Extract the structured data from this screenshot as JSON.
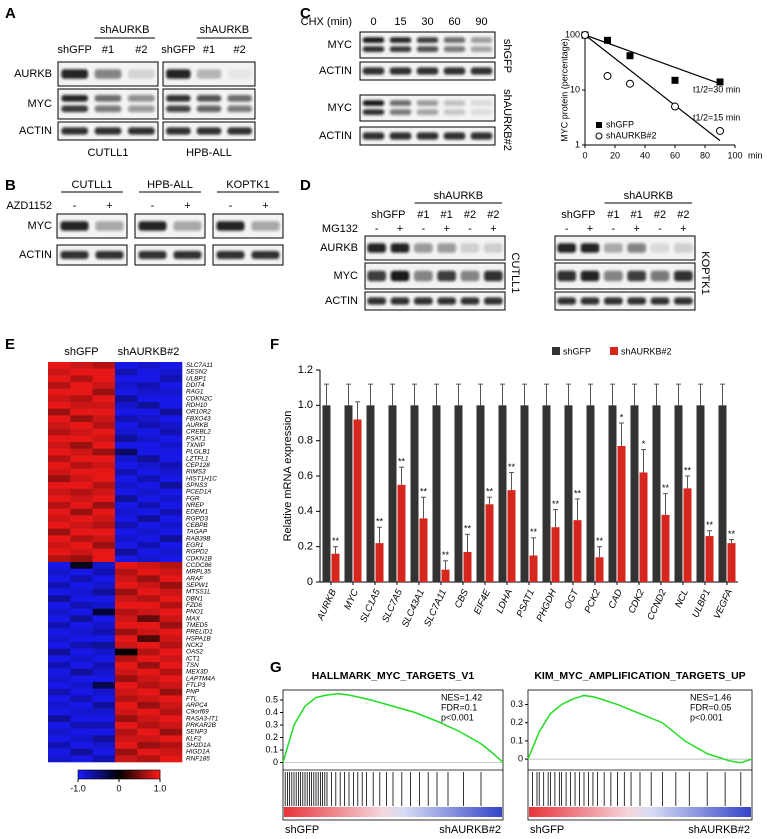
{
  "panel_labels": [
    "A",
    "B",
    "C",
    "D",
    "E",
    "F",
    "G"
  ],
  "blots": {
    "A": {
      "group": "shAURKB",
      "lanes": [
        "shGFP",
        "#1",
        "#2"
      ],
      "rows": [
        "AURKB",
        "MYC",
        "ACTIN"
      ],
      "cells": [
        "CUTLL1",
        "HPB-ALL"
      ]
    },
    "B": {
      "cells": [
        "CUTLL1",
        "HPB-ALL",
        "KOPTK1"
      ],
      "treatment": "AZD1152",
      "signs": [
        "-",
        "+"
      ],
      "rows": [
        "MYC",
        "ACTIN"
      ]
    },
    "C": {
      "treatment": "CHX (min)",
      "times": [
        "0",
        "15",
        "30",
        "60",
        "90"
      ],
      "rows": [
        "MYC",
        "ACTIN"
      ],
      "conditions": [
        "shGFP",
        "shAURKB#2"
      ]
    },
    "D": {
      "group": "shAURKB",
      "lanes": [
        "shGFP",
        "#1",
        "#1",
        "#2",
        "#2"
      ],
      "treatment": "MG132",
      "signs": [
        "-",
        "+",
        "-",
        "+",
        "-",
        "+"
      ],
      "rows": [
        "AURKB",
        "MYC",
        "ACTIN"
      ],
      "cells": [
        "CUTLL1",
        "KOPTK1"
      ]
    }
  },
  "chart_data": [
    {
      "type": "scatter",
      "y_label": "MYC protein (percentage)",
      "x_unit": "min",
      "log_y": true,
      "xlim": [
        0,
        100
      ],
      "xticks": [
        0,
        20,
        40,
        60,
        80,
        100
      ],
      "ylim": [
        1,
        100
      ],
      "yticks": [
        1,
        10,
        100
      ],
      "series": [
        {
          "name": "shGFP",
          "marker": "filled-square",
          "color": "#000000",
          "x": [
            0,
            15,
            30,
            60,
            90
          ],
          "values": [
            100,
            80,
            42,
            15,
            14
          ]
        },
        {
          "name": "shAURKB#2",
          "marker": "open-circle",
          "color": "#000000",
          "x": [
            0,
            15,
            30,
            60,
            90
          ],
          "values": [
            100,
            18,
            13,
            5,
            1.8
          ]
        }
      ],
      "fits": [
        {
          "x": [
            0,
            90
          ],
          "values": [
            100,
            13
          ]
        },
        {
          "x": [
            0,
            90
          ],
          "values": [
            100,
            1.2
          ]
        }
      ],
      "annotations": [
        "t1/2=30 min",
        "t1/2=15 min"
      ]
    },
    {
      "type": "heatmap",
      "groups": [
        "shGFP",
        "shAURKB#2"
      ],
      "genes": [
        "SLC7A11",
        "SESN2",
        "ULBP1",
        "DDIT4",
        "RAG1",
        "CDKN2C",
        "RDH10",
        "OR10R2",
        "FBXO43",
        "AURKB",
        "CREBL2",
        "PSAT1",
        "TXNIP",
        "PLGLB1",
        "LZTFL1",
        "CEP128",
        "RIMS3",
        "HIST1H1C",
        "SPNS3",
        "PCED1A",
        "FGR",
        "NREP",
        "EDEM1",
        "RGPD3",
        "CEBPB",
        "TAGAP",
        "RAB39B",
        "EGR1",
        "RGPD2",
        "CDKN1B",
        "CCDC86",
        "MRPL35",
        "ARAF",
        "SEPW1",
        "MTSS1L",
        "DBN1",
        "FZD6",
        "PNO1",
        "MAX",
        "TMED5",
        "PRELID1",
        "HSPA1B",
        "NCK2",
        "OAS2",
        "ICT1",
        "TSN",
        "MEX3D",
        "LAPTM4A",
        "FTLP3",
        "PNP",
        "FTL",
        "ARPC4",
        "C9orf69",
        "RASA3-IT1",
        "PRKAR2B",
        "SENP3",
        "KLF2",
        "SH2D1A",
        "HIGD1A",
        "RNF185"
      ],
      "matrix": [
        [
          0.9,
          0.8,
          0.7,
          -0.9,
          -0.8,
          -0.9
        ],
        [
          0.8,
          0.9,
          0.9,
          -0.7,
          -0.9,
          -0.8
        ],
        [
          0.9,
          0.7,
          0.9,
          -0.9,
          -0.9,
          -0.7
        ],
        [
          0.7,
          0.9,
          0.8,
          -0.8,
          -0.7,
          -0.9
        ],
        [
          0.9,
          0.9,
          0.6,
          -0.9,
          -0.8,
          -0.8
        ],
        [
          0.8,
          0.7,
          0.9,
          -0.6,
          -0.9,
          -0.9
        ],
        [
          0.9,
          0.8,
          0.8,
          -0.8,
          -0.6,
          -0.9
        ],
        [
          0.6,
          0.9,
          0.9,
          -0.9,
          -0.9,
          -0.6
        ],
        [
          0.9,
          0.6,
          0.8,
          -0.7,
          -0.8,
          -0.9
        ],
        [
          0.8,
          0.9,
          0.7,
          -0.9,
          -0.7,
          -0.8
        ],
        [
          0.7,
          0.8,
          0.9,
          -0.8,
          -0.9,
          -0.7
        ],
        [
          0.9,
          0.9,
          0.8,
          -0.6,
          -0.8,
          -0.9
        ],
        [
          0.8,
          0.6,
          0.9,
          -0.9,
          -0.9,
          -0.8
        ],
        [
          0.9,
          0.8,
          0.6,
          -0.4,
          -0.9,
          -0.9
        ],
        [
          0.7,
          0.9,
          0.9,
          -0.8,
          -0.6,
          -0.9
        ],
        [
          0.9,
          0.7,
          0.8,
          -0.9,
          -0.8,
          -0.7
        ],
        [
          0.8,
          0.9,
          0.9,
          -0.7,
          -0.9,
          -0.8
        ],
        [
          0.6,
          0.8,
          0.9,
          -0.9,
          -0.7,
          -0.9
        ],
        [
          0.9,
          0.9,
          0.7,
          -0.8,
          -0.9,
          -0.6
        ],
        [
          0.8,
          0.7,
          0.8,
          -0.9,
          -0.8,
          -0.9
        ],
        [
          0.9,
          0.8,
          0.9,
          -0.6,
          -0.9,
          -0.8
        ],
        [
          0.7,
          0.9,
          0.6,
          -0.9,
          -0.7,
          -0.9
        ],
        [
          0.9,
          0.6,
          0.9,
          -0.8,
          -0.9,
          -0.7
        ],
        [
          0.8,
          0.9,
          0.8,
          -0.9,
          -0.6,
          -0.9
        ],
        [
          0.9,
          0.8,
          0.7,
          -0.7,
          -0.9,
          -0.8
        ],
        [
          0.6,
          0.9,
          0.9,
          -0.9,
          -0.8,
          -0.9
        ],
        [
          0.9,
          0.7,
          0.8,
          -0.8,
          -0.9,
          -0.6
        ],
        [
          0.8,
          0.9,
          0.6,
          -0.9,
          -0.7,
          -0.9
        ],
        [
          0.9,
          0.8,
          0.9,
          -0.6,
          -0.9,
          -0.8
        ],
        [
          0.7,
          0.6,
          0.9,
          -0.9,
          -0.8,
          -0.9
        ],
        [
          -0.9,
          -0.1,
          -0.8,
          0.9,
          0.8,
          0.7
        ],
        [
          -0.8,
          -0.9,
          -0.7,
          0.7,
          0.9,
          0.8
        ],
        [
          -0.9,
          -0.7,
          -0.9,
          0.8,
          0.6,
          0.9
        ],
        [
          -0.7,
          -0.9,
          -0.8,
          0.9,
          0.8,
          0.6
        ],
        [
          -0.9,
          -0.8,
          -0.6,
          0.6,
          0.9,
          0.8
        ],
        [
          -0.6,
          -0.9,
          -0.9,
          0.8,
          0.7,
          0.9
        ],
        [
          -0.9,
          -0.7,
          -0.8,
          0.9,
          0.9,
          0.7
        ],
        [
          -0.8,
          -0.9,
          -0.2,
          0.7,
          0.8,
          0.9
        ],
        [
          -0.9,
          -0.6,
          -0.9,
          0.8,
          0.4,
          0.8
        ],
        [
          -0.7,
          -0.9,
          -0.8,
          0.9,
          0.9,
          0.6
        ],
        [
          -0.9,
          -0.8,
          -0.7,
          0.6,
          0.8,
          0.9
        ],
        [
          -0.8,
          -0.9,
          -0.9,
          0.9,
          0.3,
          0.8
        ],
        [
          -0.9,
          -0.7,
          -0.6,
          0.8,
          0.9,
          0.7
        ],
        [
          -0.6,
          -0.9,
          -0.8,
          0.0,
          0.7,
          0.9
        ],
        [
          -0.9,
          -0.8,
          -0.9,
          0.7,
          0.9,
          0.8
        ],
        [
          -0.7,
          -0.9,
          -0.7,
          0.9,
          0.6,
          0.9
        ],
        [
          -0.9,
          -0.6,
          -0.8,
          0.8,
          0.9,
          0.7
        ],
        [
          -0.8,
          -0.9,
          -0.9,
          0.6,
          0.8,
          0.9
        ],
        [
          -0.9,
          -0.8,
          -0.3,
          0.9,
          0.7,
          0.8
        ],
        [
          -0.7,
          -0.9,
          -0.8,
          0.8,
          0.9,
          0.6
        ],
        [
          -0.9,
          -0.7,
          -0.9,
          0.7,
          0.8,
          0.9
        ],
        [
          -0.8,
          -0.9,
          -0.6,
          0.9,
          0.6,
          0.8
        ],
        [
          -0.9,
          -0.8,
          -0.8,
          0.8,
          0.9,
          0.7
        ],
        [
          -0.6,
          -0.9,
          -0.9,
          0.6,
          0.8,
          0.9
        ],
        [
          -0.9,
          -0.7,
          -0.7,
          0.9,
          0.7,
          0.8
        ],
        [
          -0.8,
          -0.9,
          -0.9,
          0.7,
          0.9,
          0.6
        ],
        [
          -0.9,
          -0.8,
          -0.6,
          0.8,
          0.8,
          0.9
        ],
        [
          -0.7,
          -0.9,
          -0.8,
          0.9,
          0.6,
          0.7
        ],
        [
          -0.9,
          -0.6,
          -0.9,
          0.6,
          0.9,
          0.8
        ],
        [
          -0.8,
          -0.9,
          -0.7,
          0.8,
          0.7,
          0.9
        ]
      ],
      "clim": [
        -1,
        1
      ],
      "colors": [
        "#1a1aff",
        "#000000",
        "#ff1a1a"
      ],
      "colorbar_ticks": [
        {
          "value": -1,
          "label": "-1.0"
        },
        0,
        {
          "value": 1,
          "label": "1.0"
        }
      ]
    },
    {
      "type": "bar",
      "y_label": "Relative mRNA expression",
      "categories": [
        "AURKB",
        "MYC",
        "SLC1A5",
        "SLC7A5",
        "SLC43A1",
        "SLC7A11",
        "CBS",
        "EIF4E",
        "LDHA",
        "PSAT1",
        "PHGDH",
        "OGT",
        "PCK2",
        "CAD",
        "CDK2",
        "CCND2",
        "NCL",
        "ULBP1",
        "VEGFA"
      ],
      "ylim": [
        0,
        1.2
      ],
      "yticks": [
        0,
        0.2,
        0.4,
        0.6,
        0.8,
        {
          "value": 1,
          "label": "1.0"
        },
        1.2
      ],
      "series": [
        {
          "name": "shGFP",
          "color": "#333333",
          "values": [
            1,
            1,
            1,
            1,
            1,
            1,
            1,
            1,
            1,
            1,
            1,
            1,
            1,
            1,
            1,
            1,
            1,
            1,
            1
          ],
          "errors": [
            0.12,
            0.12,
            0.12,
            0.12,
            0.12,
            0.12,
            0.12,
            0.12,
            0.12,
            0.12,
            0.12,
            0.12,
            0.12,
            0.12,
            0.12,
            0.12,
            0.12,
            0.12,
            0.12
          ]
        },
        {
          "name": "shAURKB#2",
          "color": "#d7261e",
          "values": [
            0.16,
            0.92,
            0.22,
            0.55,
            0.36,
            0.07,
            0.17,
            0.44,
            0.52,
            0.15,
            0.31,
            0.35,
            0.14,
            0.77,
            0.62,
            0.38,
            0.53,
            0.26,
            0.22
          ],
          "errors": [
            0.04,
            0.1,
            0.09,
            0.1,
            0.12,
            0.05,
            0.1,
            0.04,
            0.1,
            0.1,
            0.1,
            0.12,
            0.06,
            0.13,
            0.13,
            0.12,
            0.07,
            0.03,
            0.02
          ],
          "annotations": [
            "**",
            null,
            "**",
            "**",
            "**",
            "**",
            "**",
            "**",
            "**",
            "**",
            "**",
            "**",
            "**",
            "*",
            "*",
            "**",
            "**",
            "**",
            "**"
          ]
        }
      ]
    },
    {
      "type": "line",
      "title": "HALLMARK_MYC_TARGETS_V1",
      "color": "#22dd22",
      "x": [
        0,
        5,
        10,
        15,
        20,
        25,
        30,
        40,
        50,
        60,
        70,
        80,
        90,
        95,
        100
      ],
      "values": [
        0,
        0.3,
        0.45,
        0.52,
        0.54,
        0.55,
        0.54,
        0.5,
        0.45,
        0.4,
        0.33,
        0.25,
        0.15,
        0.08,
        0
      ],
      "xlim": [
        0,
        100
      ],
      "ylim": [
        -0.06,
        0.58
      ],
      "yticks": [
        0,
        0.1,
        0.2,
        0.3,
        0.4,
        0.5
      ],
      "hits": [
        1,
        2,
        3,
        4,
        5,
        6,
        7,
        8,
        9,
        10,
        11,
        12,
        13,
        14,
        15,
        16,
        17,
        18,
        19,
        20,
        22,
        24,
        26,
        28,
        30,
        32,
        34,
        36,
        38,
        41,
        44,
        47,
        50,
        54,
        58,
        62,
        66,
        70,
        75,
        82,
        90
      ],
      "stats": [
        "NES=1.42",
        "FDR=0.1",
        "p<0.001"
      ],
      "ends": [
        "shGFP",
        "shAURKB#2"
      ]
    },
    {
      "type": "line",
      "title": "KIM_MYC_AMPLIFICATION_TARGETS_UP",
      "color": "#22dd22",
      "x": [
        0,
        5,
        10,
        15,
        20,
        25,
        30,
        40,
        50,
        60,
        70,
        80,
        90,
        95,
        100
      ],
      "values": [
        0,
        0.15,
        0.25,
        0.3,
        0.33,
        0.35,
        0.34,
        0.3,
        0.25,
        0.2,
        0.1,
        0.03,
        -0.01,
        -0.02,
        0
      ],
      "xlim": [
        0,
        100
      ],
      "ylim": [
        -0.06,
        0.38
      ],
      "yticks": [
        0,
        0.1,
        0.2,
        0.3
      ],
      "hits": [
        2,
        4,
        5,
        7,
        9,
        10,
        12,
        14,
        15,
        17,
        19,
        21,
        23,
        25,
        27,
        29,
        31,
        34,
        37,
        40,
        43,
        46,
        50,
        55,
        60,
        66,
        72,
        80,
        88,
        95
      ],
      "stats": [
        "NES=1.46",
        "FDR=0.05",
        "p<0.001"
      ],
      "ends": [
        "shGFP",
        "shAURKB#2"
      ]
    }
  ]
}
